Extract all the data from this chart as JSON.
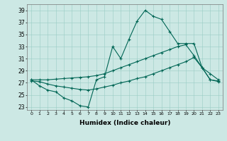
{
  "xlabel": "Humidex (Indice chaleur)",
  "bg_color": "#cce8e4",
  "grid_color": "#99ccc4",
  "line_color": "#006655",
  "xlim": [
    -0.5,
    23.5
  ],
  "ylim": [
    22.5,
    40.0
  ],
  "xticks": [
    0,
    1,
    2,
    3,
    4,
    5,
    6,
    7,
    8,
    9,
    10,
    11,
    12,
    13,
    14,
    15,
    16,
    17,
    18,
    19,
    20,
    21,
    22,
    23
  ],
  "yticks": [
    23,
    25,
    27,
    29,
    31,
    33,
    35,
    37,
    39
  ],
  "line1_x": [
    0,
    1,
    2,
    3,
    4,
    5,
    6,
    7,
    8,
    9,
    10,
    11,
    12,
    13,
    14,
    15,
    16,
    17,
    18,
    19,
    20,
    21,
    22,
    23
  ],
  "line1_y": [
    27.5,
    26.5,
    25.8,
    25.5,
    24.5,
    24.0,
    23.2,
    23.0,
    27.5,
    28.0,
    33.0,
    31.0,
    34.2,
    37.2,
    39.0,
    38.0,
    37.5,
    35.5,
    33.5,
    33.5,
    33.5,
    29.5,
    28.5,
    27.5
  ],
  "line2_x": [
    0,
    1,
    2,
    3,
    4,
    5,
    6,
    7,
    8,
    9,
    10,
    11,
    12,
    13,
    14,
    15,
    16,
    17,
    18,
    19,
    20,
    21,
    22,
    23
  ],
  "line2_y": [
    27.5,
    27.5,
    27.5,
    27.6,
    27.7,
    27.8,
    27.9,
    28.0,
    28.2,
    28.5,
    29.0,
    29.5,
    30.0,
    30.5,
    31.0,
    31.5,
    32.0,
    32.5,
    33.0,
    33.3,
    31.5,
    29.5,
    27.5,
    27.3
  ],
  "line3_x": [
    0,
    1,
    2,
    3,
    4,
    5,
    6,
    7,
    8,
    9,
    10,
    11,
    12,
    13,
    14,
    15,
    16,
    17,
    18,
    19,
    20,
    21,
    22,
    23
  ],
  "line3_y": [
    27.3,
    27.2,
    26.8,
    26.5,
    26.3,
    26.1,
    25.9,
    25.8,
    26.0,
    26.3,
    26.6,
    27.0,
    27.3,
    27.7,
    28.0,
    28.5,
    29.0,
    29.5,
    30.0,
    30.5,
    31.2,
    29.5,
    27.5,
    27.2
  ]
}
